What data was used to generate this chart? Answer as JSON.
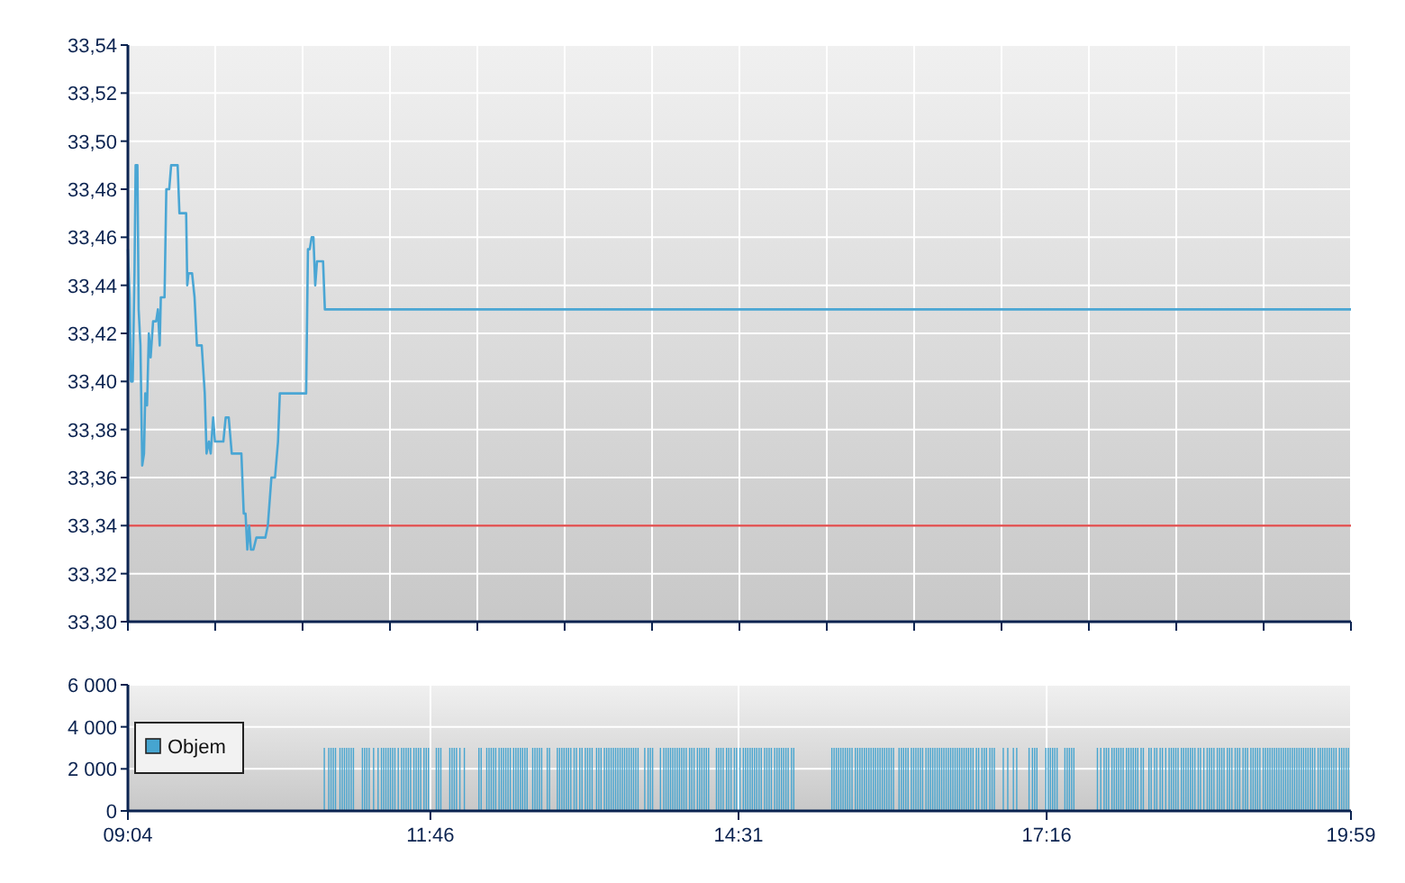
{
  "chart_data": [
    {
      "type": "line",
      "xlim": [
        9.067,
        19.983
      ],
      "ylim": [
        33.3,
        33.54
      ],
      "xticks": [
        {
          "value": 9.067,
          "label": null
        },
        {
          "value": 9.846,
          "label": null
        },
        {
          "value": 10.626,
          "label": null
        },
        {
          "value": 11.406,
          "label": null
        },
        {
          "value": 12.186,
          "label": null
        },
        {
          "value": 12.965,
          "label": null
        },
        {
          "value": 13.745,
          "label": null
        },
        {
          "value": 14.525,
          "label": null
        },
        {
          "value": 15.305,
          "label": null
        },
        {
          "value": 16.084,
          "label": null
        },
        {
          "value": 16.864,
          "label": null
        },
        {
          "value": 17.644,
          "label": null
        },
        {
          "value": 18.424,
          "label": null
        },
        {
          "value": 19.204,
          "label": null
        },
        {
          "value": 19.983,
          "label": null
        }
      ],
      "yticks": [
        {
          "value": 33.3,
          "label": "33,30"
        },
        {
          "value": 33.32,
          "label": "33,32"
        },
        {
          "value": 33.34,
          "label": "33,34"
        },
        {
          "value": 33.36,
          "label": "33,36"
        },
        {
          "value": 33.38,
          "label": "33,38"
        },
        {
          "value": 33.4,
          "label": "33,40"
        },
        {
          "value": 33.42,
          "label": "33,42"
        },
        {
          "value": 33.44,
          "label": "33,44"
        },
        {
          "value": 33.46,
          "label": "33,46"
        },
        {
          "value": 33.48,
          "label": "33,48"
        },
        {
          "value": 33.5,
          "label": "33,50"
        },
        {
          "value": 33.52,
          "label": "33,52"
        },
        {
          "value": 33.54,
          "label": "33,54"
        }
      ],
      "grid": true,
      "tick_labels": "y",
      "ref_lines": [
        {
          "axis": "y",
          "value": 33.34,
          "color": "#e04848"
        }
      ],
      "series": [
        {
          "color": "#4aa6d4",
          "x": [
            9.067,
            9.083,
            9.094,
            9.11,
            9.126,
            9.136,
            9.152,
            9.163,
            9.179,
            9.195,
            9.211,
            9.222,
            9.238,
            9.254,
            9.27,
            9.292,
            9.319,
            9.335,
            9.351,
            9.361,
            9.394,
            9.41,
            9.436,
            9.453,
            9.511,
            9.527,
            9.587,
            9.597,
            9.608,
            9.64,
            9.662,
            9.683,
            9.726,
            9.753,
            9.769,
            9.79,
            9.806,
            9.828,
            9.844,
            9.919,
            9.94,
            9.967,
            9.994,
            10.08,
            10.101,
            10.117,
            10.133,
            10.149,
            10.165,
            10.187,
            10.214,
            10.294,
            10.316,
            10.348,
            10.38,
            10.407,
            10.423,
            10.658,
            10.674,
            10.69,
            10.707,
            10.723,
            10.739,
            10.755,
            10.809,
            10.825,
            19.983
          ],
          "values": [
            33.455,
            33.435,
            33.4,
            33.4,
            33.445,
            33.49,
            33.49,
            33.43,
            33.415,
            33.365,
            33.37,
            33.395,
            33.39,
            33.42,
            33.41,
            33.425,
            33.425,
            33.43,
            33.415,
            33.435,
            33.435,
            33.48,
            33.48,
            33.49,
            33.49,
            33.47,
            33.47,
            33.44,
            33.445,
            33.445,
            33.435,
            33.415,
            33.415,
            33.395,
            33.37,
            33.375,
            33.37,
            33.385,
            33.375,
            33.375,
            33.385,
            33.385,
            33.37,
            33.37,
            33.345,
            33.345,
            33.33,
            33.34,
            33.33,
            33.33,
            33.335,
            33.335,
            33.34,
            33.36,
            33.36,
            33.375,
            33.395,
            33.395,
            33.455,
            33.455,
            33.46,
            33.46,
            33.44,
            33.45,
            33.45,
            33.43,
            33.43
          ]
        }
      ]
    },
    {
      "type": "bar",
      "xlim": [
        9.067,
        19.983
      ],
      "ylim": [
        0,
        6000
      ],
      "xticks": [
        {
          "value": 9.067,
          "label": "09:04"
        },
        {
          "value": 11.767,
          "label": "11:46"
        },
        {
          "value": 14.517,
          "label": "14:31"
        },
        {
          "value": 17.267,
          "label": "17:16"
        },
        {
          "value": 19.983,
          "label": "19:59"
        }
      ],
      "yticks": [
        0,
        {
          "value": 2000,
          "label": "2 000"
        },
        {
          "value": 4000,
          "label": "4 000"
        },
        {
          "value": 6000,
          "label": "6 000"
        }
      ],
      "grid": true,
      "legend": "left",
      "series": [
        {
          "name": "Objem",
          "color": "#46a5d0",
          "x": [
            10.82,
            10.86,
            10.88,
            10.9,
            10.92,
            10.96,
            10.98,
            11.0,
            11.02,
            11.04,
            11.06,
            11.08,
            11.16,
            11.18,
            11.2,
            11.22,
            11.26,
            11.3,
            11.33,
            11.35,
            11.37,
            11.39,
            11.41,
            11.43,
            11.45,
            11.48,
            11.51,
            11.53,
            11.55,
            11.57,
            11.59,
            11.62,
            11.64,
            11.66,
            11.68,
            11.71,
            11.73,
            11.75,
            11.82,
            11.84,
            11.86,
            11.94,
            11.96,
            11.98,
            12.0,
            12.03,
            12.07,
            12.2,
            12.22,
            12.27,
            12.29,
            12.31,
            12.33,
            12.35,
            12.38,
            12.4,
            12.42,
            12.44,
            12.46,
            12.48,
            12.51,
            12.53,
            12.55,
            12.57,
            12.59,
            12.61,
            12.63,
            12.68,
            12.7,
            12.72,
            12.74,
            12.76,
            12.81,
            12.83,
            12.9,
            12.92,
            12.94,
            12.96,
            12.98,
            13.0,
            13.02,
            13.05,
            13.07,
            13.1,
            13.12,
            13.15,
            13.17,
            13.19,
            13.21,
            13.25,
            13.27,
            13.29,
            13.32,
            13.34,
            13.36,
            13.38,
            13.4,
            13.42,
            13.44,
            13.46,
            13.48,
            13.5,
            13.52,
            13.54,
            13.56,
            13.58,
            13.6,
            13.62,
            13.68,
            13.71,
            13.73,
            13.75,
            13.82,
            13.85,
            13.87,
            13.89,
            13.91,
            13.93,
            13.95,
            13.97,
            13.99,
            14.01,
            14.03,
            14.05,
            14.08,
            14.1,
            14.12,
            14.15,
            14.17,
            14.19,
            14.21,
            14.23,
            14.25,
            14.32,
            14.34,
            14.36,
            14.38,
            14.41,
            14.43,
            14.45,
            14.48,
            14.5,
            14.53,
            14.56,
            14.58,
            14.6,
            14.62,
            14.64,
            14.66,
            14.68,
            14.7,
            14.72,
            14.75,
            14.77,
            14.79,
            14.81,
            14.84,
            14.86,
            14.88,
            14.9,
            14.92,
            14.94,
            14.96,
            14.99,
            15.01,
            15.35,
            15.37,
            15.39,
            15.41,
            15.43,
            15.45,
            15.47,
            15.49,
            15.51,
            15.53,
            15.56,
            15.58,
            15.6,
            15.62,
            15.64,
            15.66,
            15.68,
            15.7,
            15.72,
            15.74,
            15.76,
            15.78,
            15.8,
            15.82,
            15.84,
            15.86,
            15.88,
            15.9,
            15.95,
            15.97,
            15.99,
            16.01,
            16.03,
            16.06,
            16.08,
            16.1,
            16.12,
            16.14,
            16.16,
            16.19,
            16.21,
            16.23,
            16.25,
            16.27,
            16.29,
            16.31,
            16.33,
            16.35,
            16.37,
            16.39,
            16.41,
            16.43,
            16.45,
            16.47,
            16.49,
            16.51,
            16.53,
            16.55,
            16.57,
            16.59,
            16.61,
            16.64,
            16.66,
            16.69,
            16.71,
            16.73,
            16.76,
            16.78,
            16.8,
            16.88,
            16.92,
            16.97,
            17.0,
            17.11,
            17.14,
            17.16,
            17.18,
            17.26,
            17.28,
            17.3,
            17.32,
            17.34,
            17.36,
            17.43,
            17.45,
            17.47,
            17.49,
            17.51,
            17.72,
            17.75,
            17.78,
            17.8,
            17.82,
            17.85,
            17.87,
            17.89,
            17.91,
            17.93,
            17.95,
            17.98,
            18.0,
            18.02,
            18.04,
            18.06,
            18.08,
            18.11,
            18.13,
            18.18,
            18.2,
            18.23,
            18.25,
            18.28,
            18.3,
            18.33,
            18.36,
            18.38,
            18.4,
            18.42,
            18.44,
            18.47,
            18.49,
            18.51,
            18.53,
            18.55,
            18.57,
            18.59,
            18.62,
            18.64,
            18.67,
            18.7,
            18.72,
            18.74,
            18.76,
            18.79,
            18.81,
            18.83,
            18.85,
            18.88,
            18.9,
            18.92,
            18.95,
            18.97,
            18.99,
            19.02,
            19.04,
            19.06,
            19.09,
            19.11,
            19.13,
            19.15,
            19.17,
            19.2,
            19.22,
            19.24,
            19.26,
            19.28,
            19.3,
            19.32,
            19.34,
            19.36,
            19.38,
            19.4,
            19.42,
            19.44,
            19.46,
            19.48,
            19.5,
            19.52,
            19.54,
            19.56,
            19.58,
            19.6,
            19.62,
            19.64,
            19.66,
            19.69,
            19.71,
            19.73,
            19.75,
            19.77,
            19.79,
            19.81,
            19.83,
            19.85,
            19.88,
            19.9,
            19.92,
            19.94,
            19.96
          ],
          "values": [
            3000,
            3000,
            3000,
            3000,
            3000,
            3000,
            3000,
            3000,
            3000,
            3000,
            3000,
            3000,
            3000,
            3000,
            3000,
            3000,
            3000,
            3000,
            3000,
            3000,
            3000,
            3000,
            3000,
            3000,
            3000,
            3000,
            3000,
            3000,
            3000,
            3000,
            3000,
            3000,
            3000,
            3000,
            3000,
            3000,
            3000,
            3000,
            3000,
            3000,
            3000,
            3000,
            3000,
            3000,
            3000,
            3000,
            3000,
            3000,
            3000,
            3000,
            3000,
            3000,
            3000,
            3000,
            3000,
            3000,
            3000,
            3000,
            3000,
            3000,
            3000,
            3000,
            3000,
            3000,
            3000,
            3000,
            3000,
            3000,
            3000,
            3000,
            3000,
            3000,
            3000,
            3000,
            3000,
            3000,
            3000,
            3000,
            3000,
            3000,
            3000,
            3000,
            3000,
            3000,
            3000,
            3000,
            3000,
            3000,
            3000,
            3000,
            3000,
            3000,
            3000,
            3000,
            3000,
            3000,
            3000,
            3000,
            3000,
            3000,
            3000,
            3000,
            3000,
            3000,
            3000,
            3000,
            3000,
            3000,
            3000,
            3000,
            3000,
            3000,
            3000,
            3000,
            3000,
            3000,
            3000,
            3000,
            3000,
            3000,
            3000,
            3000,
            3000,
            3000,
            3000,
            3000,
            3000,
            3000,
            3000,
            3000,
            3000,
            3000,
            3000,
            3000,
            3000,
            3000,
            3000,
            3000,
            3000,
            3000,
            3000,
            3000,
            3000,
            3000,
            3000,
            3000,
            3000,
            3000,
            3000,
            3000,
            3000,
            3000,
            3000,
            3000,
            3000,
            3000,
            3000,
            3000,
            3000,
            3000,
            3000,
            3000,
            3000,
            3000,
            3000,
            3000,
            3000,
            3000,
            3000,
            3000,
            3000,
            3000,
            3000,
            3000,
            3000,
            3000,
            3000,
            3000,
            3000,
            3000,
            3000,
            3000,
            3000,
            3000,
            3000,
            3000,
            3000,
            3000,
            3000,
            3000,
            3000,
            3000,
            3000,
            3000,
            3000,
            3000,
            3000,
            3000,
            3000,
            3000,
            3000,
            3000,
            3000,
            3000,
            3000,
            3000,
            3000,
            3000,
            3000,
            3000,
            3000,
            3000,
            3000,
            3000,
            3000,
            3000,
            3000,
            3000,
            3000,
            3000,
            3000,
            3000,
            3000,
            3000,
            3000,
            3000,
            3000,
            3000,
            3000,
            3000,
            3000,
            3000,
            3000,
            3000,
            3000,
            3000,
            3000,
            3000,
            3000,
            3000,
            3000,
            3000,
            3000,
            3000,
            3000,
            3000,
            3000,
            3000,
            3000,
            3000,
            3000,
            3000,
            3000,
            3000,
            3000,
            3000,
            3000,
            3000,
            3000,
            3000,
            3000,
            3000,
            3000,
            3000,
            3000,
            3000,
            3000,
            3000,
            3000,
            3000,
            3000,
            3000,
            3000,
            3000,
            3000,
            3000,
            3000,
            3000,
            3000,
            3000,
            3000,
            3000,
            3000,
            3000,
            3000,
            3000,
            3000,
            3000,
            3000,
            3000,
            3000,
            3000,
            3000,
            3000,
            3000,
            3000,
            3000,
            3000,
            3000,
            3000,
            3000,
            3000,
            3000,
            3000,
            3000,
            3000,
            3000,
            3000,
            3000,
            3000,
            3000,
            3000,
            3000,
            3000,
            3000,
            3000,
            3000,
            3000,
            3000,
            3000,
            3000,
            3000,
            3000,
            3000,
            3000,
            3000,
            3000,
            3000,
            3000,
            3000,
            3000,
            3000,
            3000,
            3000,
            3000,
            3000,
            3000,
            3000,
            3000,
            3000,
            3000,
            3000,
            3000,
            3000,
            3000,
            3000,
            3000,
            3000,
            3000,
            3000,
            3000,
            3000,
            3000,
            3000
          ]
        }
      ]
    }
  ]
}
